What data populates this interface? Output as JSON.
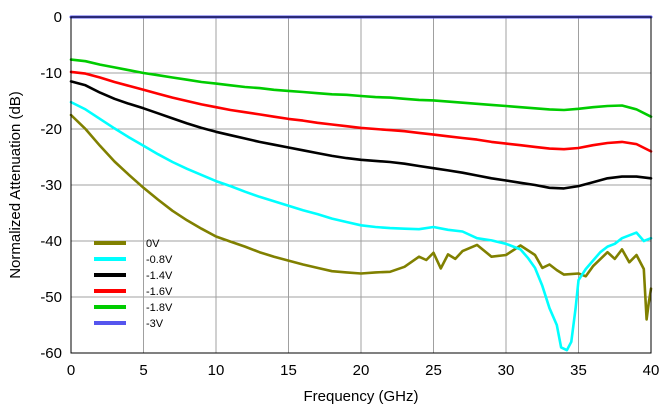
{
  "chart_data": {
    "type": "line",
    "title": "",
    "xlabel": "Frequency (GHz)",
    "ylabel": "Normalized Attenuation (dB)",
    "xlim": [
      0,
      40
    ],
    "ylim": [
      -60,
      0
    ],
    "x_ticks": [
      0,
      5,
      10,
      15,
      20,
      25,
      30,
      35,
      40
    ],
    "y_ticks": [
      0,
      -10,
      -20,
      -30,
      -40,
      -50,
      -60
    ],
    "grid": true,
    "legend_position": "bottom-left",
    "series": [
      {
        "name": "0V",
        "color": "#808000",
        "points": [
          [
            0,
            -17.5
          ],
          [
            1,
            -20
          ],
          [
            2,
            -23
          ],
          [
            3,
            -25.8
          ],
          [
            4,
            -28.2
          ],
          [
            5,
            -30.5
          ],
          [
            6,
            -32.6
          ],
          [
            7,
            -34.6
          ],
          [
            8,
            -36.3
          ],
          [
            9,
            -37.8
          ],
          [
            10,
            -39.2
          ],
          [
            11,
            -40.1
          ],
          [
            12,
            -41
          ],
          [
            13,
            -42
          ],
          [
            14,
            -42.8
          ],
          [
            15,
            -43.5
          ],
          [
            16,
            -44.2
          ],
          [
            17,
            -44.8
          ],
          [
            18,
            -45.4
          ],
          [
            19,
            -45.6
          ],
          [
            20,
            -45.8
          ],
          [
            21,
            -45.6
          ],
          [
            22,
            -45.5
          ],
          [
            23,
            -44.6
          ],
          [
            24,
            -42.8
          ],
          [
            24.5,
            -43.4
          ],
          [
            25,
            -42.1
          ],
          [
            25.5,
            -44.9
          ],
          [
            26,
            -42.4
          ],
          [
            26.5,
            -43.2
          ],
          [
            27,
            -41.8
          ],
          [
            28,
            -40.7
          ],
          [
            29,
            -42.8
          ],
          [
            30,
            -42.5
          ],
          [
            31,
            -40.8
          ],
          [
            32,
            -42.5
          ],
          [
            32.5,
            -44.8
          ],
          [
            33,
            -44.2
          ],
          [
            33.5,
            -45.2
          ],
          [
            34,
            -46
          ],
          [
            35,
            -45.8
          ],
          [
            35.5,
            -46.3
          ],
          [
            36,
            -44.5
          ],
          [
            37,
            -42
          ],
          [
            37.5,
            -43.2
          ],
          [
            38,
            -41.5
          ],
          [
            38.5,
            -43.8
          ],
          [
            39,
            -42.5
          ],
          [
            39.5,
            -45
          ],
          [
            39.7,
            -54
          ],
          [
            39.85,
            -51
          ],
          [
            40,
            -48.5
          ]
        ]
      },
      {
        "name": "-0.8V",
        "color": "#00ffff",
        "points": [
          [
            0,
            -15.2
          ],
          [
            1,
            -16.5
          ],
          [
            2,
            -18.2
          ],
          [
            3,
            -19.9
          ],
          [
            4,
            -21.5
          ],
          [
            5,
            -23
          ],
          [
            6,
            -24.5
          ],
          [
            7,
            -25.9
          ],
          [
            8,
            -27.1
          ],
          [
            9,
            -28.2
          ],
          [
            10,
            -29.3
          ],
          [
            11,
            -30.2
          ],
          [
            12,
            -31.2
          ],
          [
            13,
            -32.1
          ],
          [
            14,
            -32.9
          ],
          [
            15,
            -33.7
          ],
          [
            16,
            -34.5
          ],
          [
            17,
            -35.2
          ],
          [
            18,
            -36
          ],
          [
            19,
            -36.6
          ],
          [
            20,
            -37.2
          ],
          [
            21,
            -37.5
          ],
          [
            22,
            -37.7
          ],
          [
            23,
            -37.8
          ],
          [
            24,
            -37.9
          ],
          [
            25,
            -37.5
          ],
          [
            26,
            -38
          ],
          [
            27,
            -38.3
          ],
          [
            28,
            -39.5
          ],
          [
            29,
            -39.9
          ],
          [
            30,
            -40.5
          ],
          [
            31,
            -41.5
          ],
          [
            31.5,
            -43
          ],
          [
            32,
            -44.8
          ],
          [
            32.5,
            -48
          ],
          [
            33,
            -52
          ],
          [
            33.5,
            -55
          ],
          [
            33.8,
            -59
          ],
          [
            34.2,
            -59.5
          ],
          [
            34.5,
            -58
          ],
          [
            34.8,
            -52
          ],
          [
            35,
            -47
          ],
          [
            35.5,
            -45
          ],
          [
            36,
            -43.5
          ],
          [
            36.5,
            -42
          ],
          [
            37,
            -41
          ],
          [
            37.5,
            -40.5
          ],
          [
            38,
            -39.5
          ],
          [
            39,
            -38.5
          ],
          [
            39.5,
            -40
          ],
          [
            40,
            -39.5
          ]
        ]
      },
      {
        "name": "-1.4V",
        "color": "#000000",
        "points": [
          [
            0,
            -11.5
          ],
          [
            1,
            -12.2
          ],
          [
            2,
            -13.5
          ],
          [
            3,
            -14.6
          ],
          [
            4,
            -15.5
          ],
          [
            5,
            -16.3
          ],
          [
            6,
            -17.2
          ],
          [
            7,
            -18.1
          ],
          [
            8,
            -19
          ],
          [
            9,
            -19.8
          ],
          [
            10,
            -20.5
          ],
          [
            11,
            -21.1
          ],
          [
            12,
            -21.7
          ],
          [
            13,
            -22.3
          ],
          [
            14,
            -22.8
          ],
          [
            15,
            -23.3
          ],
          [
            16,
            -23.8
          ],
          [
            17,
            -24.3
          ],
          [
            18,
            -24.8
          ],
          [
            19,
            -25.2
          ],
          [
            20,
            -25.5
          ],
          [
            21,
            -25.7
          ],
          [
            22,
            -25.9
          ],
          [
            23,
            -26.2
          ],
          [
            24,
            -26.6
          ],
          [
            25,
            -27
          ],
          [
            26,
            -27.4
          ],
          [
            27,
            -27.8
          ],
          [
            28,
            -28.3
          ],
          [
            29,
            -28.8
          ],
          [
            30,
            -29.2
          ],
          [
            31,
            -29.6
          ],
          [
            32,
            -30
          ],
          [
            33,
            -30.5
          ],
          [
            34,
            -30.6
          ],
          [
            35,
            -30.2
          ],
          [
            36,
            -29.5
          ],
          [
            37,
            -28.8
          ],
          [
            38,
            -28.5
          ],
          [
            39,
            -28.5
          ],
          [
            40,
            -28.8
          ]
        ]
      },
      {
        "name": "-1.6V",
        "color": "#ff0000",
        "points": [
          [
            0,
            -9.8
          ],
          [
            1,
            -10.1
          ],
          [
            2,
            -10.8
          ],
          [
            3,
            -11.6
          ],
          [
            4,
            -12.3
          ],
          [
            5,
            -13
          ],
          [
            6,
            -13.7
          ],
          [
            7,
            -14.4
          ],
          [
            8,
            -15
          ],
          [
            9,
            -15.6
          ],
          [
            10,
            -16.1
          ],
          [
            11,
            -16.6
          ],
          [
            12,
            -17
          ],
          [
            13,
            -17.4
          ],
          [
            14,
            -17.8
          ],
          [
            15,
            -18.2
          ],
          [
            16,
            -18.5
          ],
          [
            17,
            -18.9
          ],
          [
            18,
            -19.2
          ],
          [
            19,
            -19.5
          ],
          [
            20,
            -19.8
          ],
          [
            21,
            -20
          ],
          [
            22,
            -20.2
          ],
          [
            23,
            -20.4
          ],
          [
            24,
            -20.7
          ],
          [
            25,
            -21
          ],
          [
            26,
            -21.3
          ],
          [
            27,
            -21.6
          ],
          [
            28,
            -21.9
          ],
          [
            29,
            -22.3
          ],
          [
            30,
            -22.6
          ],
          [
            31,
            -22.9
          ],
          [
            32,
            -23.2
          ],
          [
            33,
            -23.5
          ],
          [
            34,
            -23.6
          ],
          [
            35,
            -23.4
          ],
          [
            36,
            -22.9
          ],
          [
            37,
            -22.5
          ],
          [
            38,
            -22.3
          ],
          [
            39,
            -22.7
          ],
          [
            40,
            -24
          ]
        ]
      },
      {
        "name": "-1.8V",
        "color": "#00cc00",
        "points": [
          [
            0,
            -7.6
          ],
          [
            1,
            -7.9
          ],
          [
            2,
            -8.5
          ],
          [
            3,
            -9
          ],
          [
            4,
            -9.5
          ],
          [
            5,
            -10
          ],
          [
            6,
            -10.4
          ],
          [
            7,
            -10.8
          ],
          [
            8,
            -11.2
          ],
          [
            9,
            -11.6
          ],
          [
            10,
            -11.9
          ],
          [
            11,
            -12.2
          ],
          [
            12,
            -12.5
          ],
          [
            13,
            -12.7
          ],
          [
            14,
            -13
          ],
          [
            15,
            -13.2
          ],
          [
            16,
            -13.4
          ],
          [
            17,
            -13.6
          ],
          [
            18,
            -13.8
          ],
          [
            19,
            -13.9
          ],
          [
            20,
            -14.1
          ],
          [
            21,
            -14.3
          ],
          [
            22,
            -14.4
          ],
          [
            23,
            -14.6
          ],
          [
            24,
            -14.8
          ],
          [
            25,
            -14.9
          ],
          [
            26,
            -15.1
          ],
          [
            27,
            -15.3
          ],
          [
            28,
            -15.5
          ],
          [
            29,
            -15.7
          ],
          [
            30,
            -15.9
          ],
          [
            31,
            -16.1
          ],
          [
            32,
            -16.3
          ],
          [
            33,
            -16.5
          ],
          [
            34,
            -16.6
          ],
          [
            35,
            -16.4
          ],
          [
            36,
            -16.1
          ],
          [
            37,
            -15.9
          ],
          [
            38,
            -15.8
          ],
          [
            39,
            -16.5
          ],
          [
            40,
            -17.8
          ]
        ]
      },
      {
        "name": "-3V",
        "color": "#5555ee",
        "points": [
          [
            0,
            0
          ],
          [
            40,
            0
          ]
        ]
      }
    ]
  }
}
